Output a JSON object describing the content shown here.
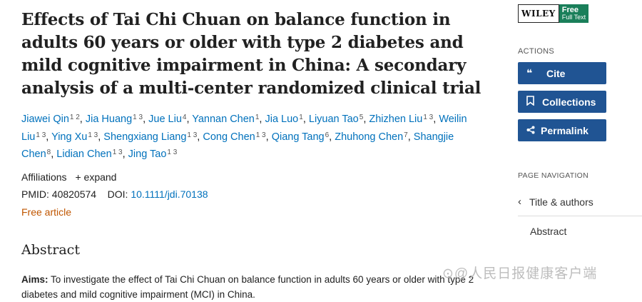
{
  "article": {
    "title": "Effects of Tai Chi Chuan on balance function in adults 60 years or older with type 2 diabetes and mild cognitive impairment in China: A secondary analysis of a multi-center randomized clinical trial",
    "authors": [
      {
        "name": "Jiawei Qin",
        "sup": "1 2"
      },
      {
        "name": "Jia Huang",
        "sup": "1 3"
      },
      {
        "name": "Jue Liu",
        "sup": "4"
      },
      {
        "name": "Yannan Chen",
        "sup": "1"
      },
      {
        "name": "Jia Luo",
        "sup": "1"
      },
      {
        "name": "Liyuan Tao",
        "sup": "5"
      },
      {
        "name": "Zhizhen Liu",
        "sup": "1 3"
      },
      {
        "name": "Weilin Liu",
        "sup": "1 3"
      },
      {
        "name": "Ying Xu",
        "sup": "1 3"
      },
      {
        "name": "Shengxiang Liang",
        "sup": "1 3"
      },
      {
        "name": "Cong Chen",
        "sup": "1 3"
      },
      {
        "name": "Qiang Tang",
        "sup": "6"
      },
      {
        "name": "Zhuhong Chen",
        "sup": "7"
      },
      {
        "name": "Shangjie Chen",
        "sup": "8"
      },
      {
        "name": "Lidian Chen",
        "sup": "1 3"
      },
      {
        "name": "Jing Tao",
        "sup": "1 3"
      }
    ],
    "affiliations_label": "Affiliations",
    "expand_label": "expand",
    "pmid_label": "PMID:",
    "pmid": "40820574",
    "doi_label": "DOI:",
    "doi": "10.1111/jdi.70138",
    "free_label": "Free article",
    "abstract_heading": "Abstract",
    "aims_label": "Aims:",
    "aims_text": " To investigate the effect of Tai Chi Chuan on balance function in adults 60 years or older with type 2 diabetes and mild cognitive impairment (MCI) in China."
  },
  "sidebar": {
    "publisher": "WILEY",
    "free_full_text_top": "Free",
    "free_full_text_bottom": "Full Text",
    "actions_label": "ACTIONS",
    "cite_label": "Cite",
    "collections_label": "Collections",
    "permalink_label": "Permalink",
    "page_nav_label": "PAGE NAVIGATION",
    "nav_title_authors": "Title & authors",
    "nav_abstract": "Abstract"
  },
  "watermark": "⊙@人民日报健康客户端",
  "colors": {
    "link": "#0071bc",
    "button": "#205493",
    "free": "#c05600"
  }
}
